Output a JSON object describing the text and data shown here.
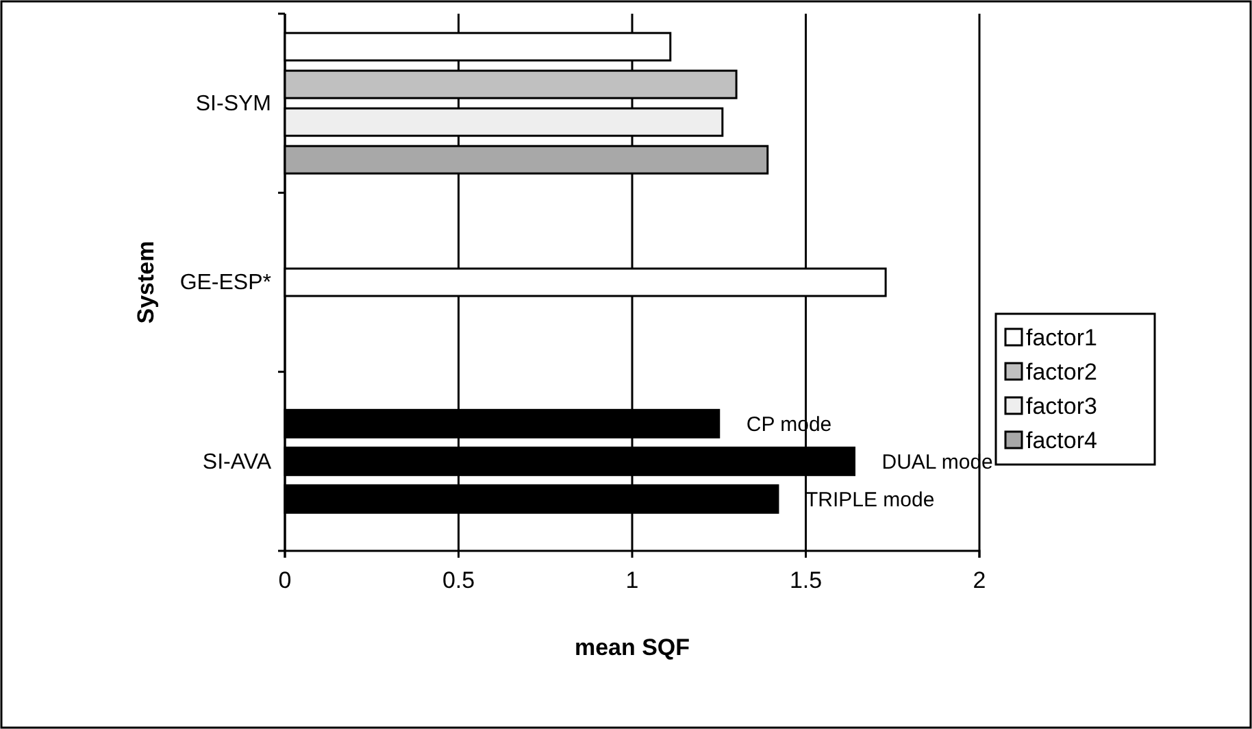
{
  "chart_data": {
    "type": "bar",
    "orientation": "horizontal",
    "xlabel": "mean SQF",
    "ylabel": "System",
    "categories": [
      "SI-SYM",
      "GE-ESP*",
      "SI-AVA"
    ],
    "series": [
      {
        "name": "factor1",
        "color": "#ffffff",
        "values": [
          1.11,
          1.73,
          null
        ]
      },
      {
        "name": "factor2",
        "color": "#c0c0c0",
        "values": [
          1.3,
          null,
          null
        ]
      },
      {
        "name": "factor3",
        "color": "#eeeeee",
        "values": [
          1.26,
          null,
          null
        ]
      },
      {
        "name": "factor4",
        "color": "#a8a8a8",
        "values": [
          1.39,
          null,
          null
        ]
      },
      {
        "color": "#000000",
        "values": [
          null,
          null,
          1.25
        ]
      },
      {
        "color": "#000000",
        "values": [
          null,
          null,
          1.64
        ]
      },
      {
        "color": "#000000",
        "values": [
          null,
          null,
          1.42
        ]
      }
    ],
    "annotations": [
      "CP mode",
      "DUAL mode",
      "TRIPLE mode"
    ],
    "xlim": [
      0,
      2
    ],
    "xticks": [
      0,
      0.5,
      1,
      1.5,
      2
    ],
    "grid": "x",
    "legend": "right"
  }
}
